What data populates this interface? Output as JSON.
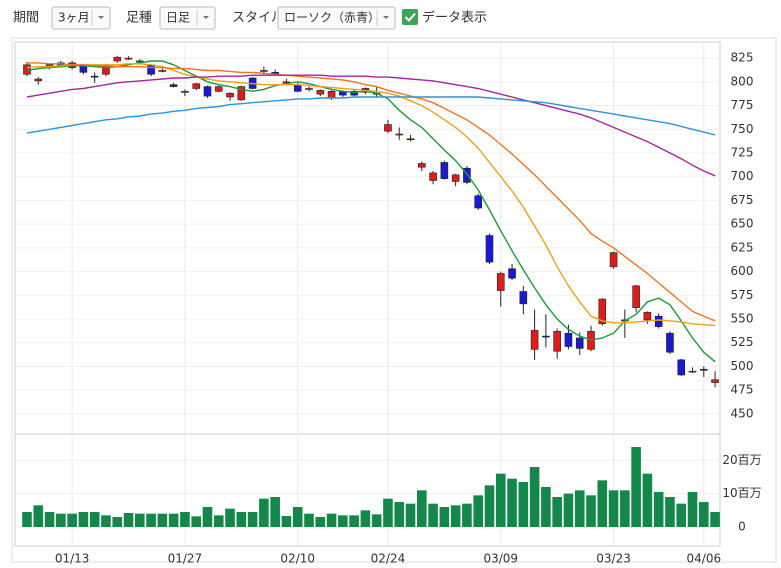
{
  "toolbar": {
    "period_label": "期間",
    "period_value": "3ヶ月",
    "bar_label": "足種",
    "bar_value": "日足",
    "style_label": "スタイル",
    "style_value": "ローソク（赤青）",
    "data_toggle": "データ表示"
  },
  "chart_data": {
    "type": "candlestick",
    "up_color": "#dd1c1c",
    "down_color": "#1a1ad0",
    "grid": true,
    "categories": [
      null,
      null,
      null,
      null,
      "01/13",
      null,
      null,
      null,
      null,
      null,
      null,
      null,
      null,
      null,
      "01/27",
      null,
      null,
      null,
      null,
      null,
      null,
      null,
      null,
      null,
      "02/10",
      null,
      null,
      null,
      null,
      null,
      null,
      null,
      "02/24",
      null,
      null,
      null,
      null,
      null,
      null,
      null,
      null,
      null,
      "03/09",
      null,
      null,
      null,
      null,
      null,
      null,
      null,
      null,
      null,
      "03/23",
      null,
      null,
      null,
      null,
      null,
      null,
      null,
      "04/06",
      null
    ],
    "open": [
      808,
      801,
      815,
      820,
      815,
      817,
      806,
      808,
      822,
      825,
      822,
      818,
      812,
      797,
      790,
      793,
      795,
      790,
      784,
      781,
      804,
      811,
      810,
      800,
      797,
      793,
      787,
      783,
      790,
      790,
      793,
      788,
      748,
      745,
      740,
      710,
      696,
      715,
      695,
      709,
      680,
      638,
      580,
      603,
      579,
      518,
      532,
      516,
      535,
      530,
      518,
      545,
      605,
      548,
      562,
      549,
      553,
      535,
      507,
      495,
      497,
      483
    ],
    "high": [
      821,
      805,
      819,
      822,
      822,
      819,
      810,
      819,
      827,
      827,
      824,
      819,
      814,
      799,
      792,
      799,
      796,
      796,
      789,
      796,
      805,
      816,
      813,
      803,
      799,
      795,
      792,
      791,
      791,
      792,
      794,
      795,
      760,
      752,
      744,
      716,
      706,
      717,
      703,
      711,
      682,
      640,
      600,
      608,
      585,
      560,
      555,
      540,
      544,
      536,
      543,
      572,
      621,
      560,
      586,
      558,
      556,
      537,
      508,
      499,
      500,
      495
    ],
    "low": [
      806,
      797,
      813,
      815,
      813,
      808,
      799,
      806,
      820,
      823,
      820,
      806,
      810,
      794,
      785,
      791,
      783,
      789,
      780,
      780,
      792,
      808,
      806,
      798,
      789,
      790,
      785,
      781,
      784,
      785,
      787,
      784,
      746,
      739,
      737,
      706,
      692,
      697,
      690,
      692,
      665,
      608,
      563,
      591,
      555,
      507,
      520,
      508,
      518,
      512,
      516,
      543,
      603,
      530,
      557,
      545,
      540,
      513,
      490,
      493,
      489,
      478
    ],
    "close": [
      818,
      803,
      818,
      817,
      820,
      810,
      805,
      818,
      826,
      825,
      822,
      808,
      812,
      795,
      790,
      798,
      785,
      795,
      788,
      795,
      793,
      812,
      808,
      800,
      790,
      793,
      791,
      790,
      786,
      786,
      789,
      788,
      755,
      745,
      739,
      714,
      704,
      698,
      702,
      694,
      667,
      610,
      598,
      593,
      566,
      538,
      531,
      537,
      521,
      519,
      537,
      571,
      620,
      549,
      585,
      557,
      542,
      515,
      491,
      495,
      496,
      486
    ],
    "series": [
      {
        "color": "#1e9a3c",
        "values": [
          812,
          814,
          815,
          816,
          817,
          817,
          816,
          815,
          816,
          818,
          820,
          822,
          822,
          818,
          812,
          806,
          800,
          797,
          795,
          792,
          790,
          792,
          796,
          798,
          800,
          798,
          795,
          792,
          790,
          789,
          790,
          788,
          782,
          770,
          760,
          752,
          740,
          728,
          717,
          703,
          686,
          665,
          643,
          622,
          602,
          583,
          565,
          550,
          539,
          532,
          528,
          530,
          535,
          548,
          555,
          568,
          572,
          565,
          548,
          530,
          515,
          505
        ]
      },
      {
        "color": "#e8a21c",
        "values": [
          815,
          816,
          816,
          817,
          818,
          818,
          818,
          818,
          818,
          819,
          819,
          818,
          816,
          812,
          808,
          805,
          803,
          801,
          800,
          799,
          798,
          797,
          797,
          797,
          797,
          796,
          795,
          794,
          793,
          792,
          791,
          790,
          788,
          785,
          780,
          775,
          768,
          760,
          752,
          742,
          730,
          715,
          700,
          685,
          668,
          648,
          628,
          605,
          585,
          568,
          553,
          548,
          546,
          546,
          547,
          548,
          549,
          548,
          547,
          545,
          544,
          543
        ]
      },
      {
        "color": "#f07522",
        "values": [
          820,
          820,
          819,
          819,
          818,
          818,
          817,
          817,
          816,
          816,
          816,
          815,
          815,
          814,
          814,
          813,
          812,
          812,
          811,
          810,
          810,
          809,
          808,
          807,
          806,
          805,
          804,
          803,
          802,
          800,
          797,
          795,
          791,
          788,
          785,
          782,
          778,
          772,
          766,
          760,
          752,
          744,
          734,
          724,
          713,
          702,
          690,
          678,
          666,
          654,
          640,
          632,
          625,
          616,
          607,
          598,
          588,
          578,
          568,
          558,
          553,
          548
        ]
      },
      {
        "color": "#a3269f",
        "values": [
          784,
          786,
          788,
          790,
          792,
          793,
          795,
          797,
          799,
          800,
          801,
          802,
          803,
          804,
          804,
          805,
          805,
          806,
          806,
          806,
          807,
          807,
          807,
          807,
          807,
          807,
          807,
          806,
          806,
          806,
          806,
          805,
          805,
          804,
          803,
          802,
          801,
          799,
          797,
          795,
          793,
          790,
          787,
          784,
          781,
          778,
          775,
          772,
          769,
          766,
          762,
          757,
          752,
          747,
          742,
          737,
          731,
          725,
          719,
          712,
          706,
          701
        ]
      },
      {
        "color": "#2f93d6",
        "values": [
          746,
          748,
          750,
          752,
          754,
          756,
          758,
          760,
          761,
          763,
          764,
          766,
          767,
          769,
          770,
          772,
          773,
          774,
          776,
          777,
          778,
          779,
          780,
          781,
          782,
          782,
          783,
          783,
          783,
          784,
          784,
          784,
          784,
          784,
          784,
          784,
          784,
          784,
          784,
          784,
          784,
          783,
          782,
          781,
          780,
          779,
          778,
          776,
          774,
          772,
          770,
          768,
          766,
          764,
          762,
          760,
          758,
          756,
          753,
          750,
          747,
          744
        ]
      }
    ],
    "ylim": [
      433,
      842
    ],
    "yticks": [
      450,
      475,
      500,
      525,
      550,
      575,
      600,
      625,
      650,
      675,
      700,
      725,
      750,
      775,
      800,
      825
    ],
    "volume": {
      "color": "#13884a",
      "ylim": [
        0,
        24
      ],
      "yticks": [
        0,
        {
          "value": 10,
          "label": "10百万"
        },
        {
          "value": 20,
          "label": "20百万"
        }
      ],
      "values": [
        4.5,
        6.5,
        4.5,
        4,
        4,
        4.5,
        4.5,
        3.5,
        3,
        4.2,
        4,
        4,
        4,
        4,
        4.5,
        3.2,
        6,
        3.5,
        5.5,
        4.5,
        4.5,
        8.5,
        9,
        3.3,
        6,
        4,
        3,
        4,
        3.5,
        3.5,
        5,
        3.8,
        8.5,
        7.5,
        7,
        11,
        7,
        6,
        6.5,
        7,
        9.5,
        12.5,
        16,
        14.5,
        13.5,
        18,
        12,
        9,
        10,
        11,
        9.5,
        14,
        11,
        11,
        24,
        16,
        10.5,
        9,
        7,
        10.5,
        7.5,
        4.5
      ]
    }
  }
}
